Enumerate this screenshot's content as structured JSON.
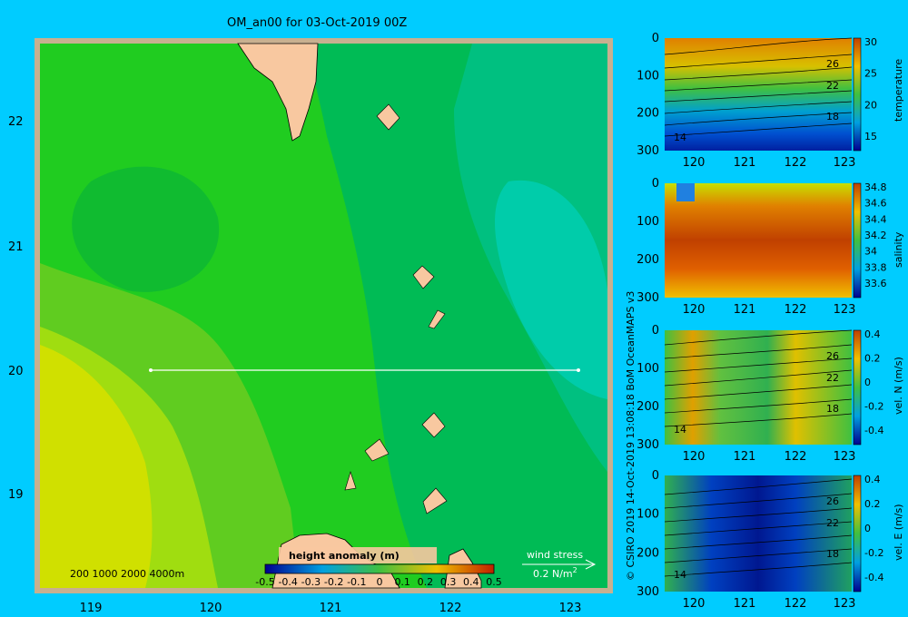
{
  "map": {
    "title": "OM_an00 for 03-Oct-2019 00Z",
    "lon_ticks": [
      "119",
      "120",
      "121",
      "122",
      "123"
    ],
    "lat_ticks": [
      "22",
      "21",
      "20",
      "19"
    ],
    "depth_legend": "200  1000  2000  4000m",
    "colorbar_title": "height anomaly (m)",
    "colorbar_ticks": [
      "-0.5",
      "-0.4",
      "-0.3",
      "-0.2",
      "-0.1",
      "0",
      "0.1",
      "0.2",
      "0.3",
      "0.4",
      "0.5"
    ],
    "wind_label": "wind stress",
    "wind_scale": "0.2 N/m",
    "wind_scale_sup": "2",
    "colors": {
      "background": "#00ccff",
      "land": "#f8c8a0",
      "border": "#c8b090"
    }
  },
  "credit": "© CSIRO 2019   14-Oct-2019 13:08:18 BoM OceanMAPS v3",
  "sections": [
    {
      "label": "temperature",
      "depth_ticks": [
        "0",
        "100",
        "200",
        "300"
      ],
      "lon_ticks": [
        "120",
        "121",
        "122",
        "123"
      ],
      "cbar_ticks": [
        "30",
        "25",
        "20",
        "15"
      ],
      "contour_labels": [
        "26",
        "22",
        "18",
        "14"
      ]
    },
    {
      "label": "salinity",
      "depth_ticks": [
        "0",
        "100",
        "200",
        "300"
      ],
      "lon_ticks": [
        "120",
        "121",
        "122",
        "123"
      ],
      "cbar_ticks": [
        "34.8",
        "34.6",
        "34.4",
        "34.2",
        "34",
        "33.8",
        "33.6"
      ],
      "contour_labels": []
    },
    {
      "label": "vel. N (m/s)",
      "depth_ticks": [
        "0",
        "100",
        "200",
        "300"
      ],
      "lon_ticks": [
        "120",
        "121",
        "122",
        "123"
      ],
      "cbar_ticks": [
        "0.4",
        "0.2",
        "0",
        "-0.2",
        "-0.4"
      ],
      "contour_labels": [
        "26",
        "22",
        "18",
        "14"
      ]
    },
    {
      "label": "vel. E (m/s)",
      "depth_ticks": [
        "0",
        "100",
        "200",
        "300"
      ],
      "lon_ticks": [
        "120",
        "121",
        "122",
        "123"
      ],
      "cbar_ticks": [
        "0.4",
        "0.2",
        "0",
        "-0.2",
        "-0.4"
      ],
      "contour_labels": [
        "26",
        "22",
        "18",
        "14"
      ]
    }
  ]
}
